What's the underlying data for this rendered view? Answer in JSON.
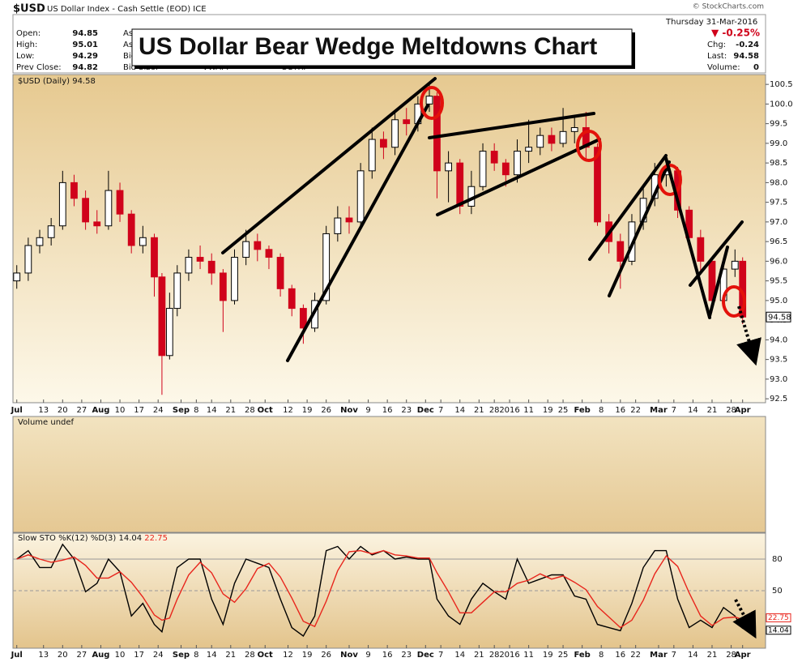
{
  "header": {
    "symbol": "$USD",
    "name": "US Dollar Index - Cash Settle (EOD) ICE",
    "credit": "© StockCharts.com",
    "date": "Thursday 31-Mar-2016"
  },
  "quote": {
    "labels": [
      "Open:",
      "High:",
      "Low:",
      "Prev Close:"
    ],
    "values": [
      94.85,
      95.01,
      94.29,
      94.82
    ],
    "mid_labels": [
      "Ask:",
      "Ask Size:",
      "Bid:",
      "Bid Size:"
    ],
    "vwap": "VWAP:",
    "sctr": "SCTR:",
    "change_pct": "▼ -0.25%",
    "right_labels": [
      "Chg:",
      "Last:",
      "Volume:"
    ],
    "right_values": [
      -0.24,
      94.58,
      0
    ]
  },
  "annotation": "US Dollar Bear Wedge Meltdowns Chart",
  "chart_data": [
    {
      "type": "candlestick",
      "series_name": "$USD (Daily)",
      "x": [
        0,
        3,
        6,
        9,
        12,
        15,
        18,
        21,
        24,
        27,
        30,
        33,
        36,
        38,
        40,
        42,
        45,
        48,
        51,
        54,
        57,
        60,
        63,
        66,
        69,
        72,
        75,
        78,
        81,
        84,
        87,
        90,
        93,
        96,
        99,
        102,
        105,
        108,
        110,
        113,
        116,
        119,
        122,
        125,
        128,
        131,
        134,
        137,
        140,
        143,
        146,
        149,
        152,
        155,
        158,
        161,
        164,
        167,
        170,
        173,
        176,
        179,
        182,
        185,
        188,
        190
      ],
      "open": [
        95.5,
        95.7,
        96.4,
        96.6,
        96.9,
        98.0,
        97.6,
        97.0,
        96.9,
        97.8,
        97.2,
        96.4,
        96.6,
        95.6,
        93.6,
        94.8,
        95.7,
        96.1,
        96.0,
        95.7,
        95.0,
        96.1,
        96.5,
        96.3,
        96.1,
        95.3,
        94.8,
        94.3,
        95.0,
        96.7,
        97.1,
        97.0,
        98.3,
        99.1,
        98.9,
        99.6,
        99.5,
        100.0,
        100.2,
        98.3,
        98.5,
        97.4,
        97.9,
        98.8,
        98.5,
        98.2,
        98.8,
        98.9,
        99.2,
        99.0,
        99.3,
        99.4,
        98.9,
        97.0,
        96.5,
        96.0,
        97.0,
        97.6,
        98.2,
        98.3,
        97.3,
        96.6,
        96.0,
        95.0,
        95.8,
        96.0
      ],
      "high": [
        95.9,
        96.6,
        96.8,
        97.1,
        98.3,
        98.2,
        97.8,
        97.3,
        98.3,
        98.0,
        97.3,
        96.9,
        96.7,
        95.7,
        95.2,
        95.9,
        96.3,
        96.4,
        96.2,
        95.8,
        96.3,
        96.8,
        96.7,
        96.4,
        96.2,
        95.4,
        94.9,
        95.2,
        96.9,
        97.4,
        97.4,
        98.5,
        99.4,
        99.3,
        99.8,
        99.9,
        100.2,
        100.5,
        100.3,
        98.8,
        98.6,
        98.3,
        99.0,
        99.0,
        98.6,
        99.1,
        99.6,
        99.4,
        99.4,
        99.9,
        99.7,
        99.8,
        99.0,
        97.2,
        96.7,
        97.2,
        97.9,
        98.5,
        98.6,
        98.4,
        97.4,
        96.8,
        96.1,
        96.0,
        96.3,
        96.1
      ],
      "low": [
        95.3,
        95.5,
        96.2,
        96.4,
        96.8,
        97.4,
        96.8,
        96.7,
        96.8,
        97.0,
        96.2,
        96.2,
        95.1,
        92.6,
        93.5,
        94.6,
        95.5,
        95.8,
        95.4,
        94.2,
        94.9,
        95.9,
        96.0,
        95.8,
        95.1,
        94.6,
        93.9,
        94.2,
        94.9,
        96.5,
        96.7,
        96.9,
        98.1,
        98.6,
        98.7,
        99.2,
        99.3,
        99.8,
        97.6,
        97.5,
        97.2,
        97.2,
        97.8,
        98.3,
        97.9,
        98.0,
        98.5,
        98.7,
        98.8,
        98.9,
        99.0,
        98.6,
        96.9,
        96.2,
        95.3,
        95.9,
        96.8,
        97.4,
        97.9,
        97.1,
        96.4,
        95.7,
        94.7,
        94.9,
        95.6,
        94.4
      ],
      "close": [
        95.7,
        96.4,
        96.6,
        96.9,
        98.0,
        97.6,
        97.0,
        96.9,
        97.8,
        97.2,
        96.4,
        96.6,
        95.6,
        93.6,
        94.8,
        95.7,
        96.1,
        96.0,
        95.7,
        95.0,
        96.1,
        96.5,
        96.3,
        96.1,
        95.3,
        94.8,
        94.3,
        95.0,
        96.7,
        97.1,
        97.0,
        98.3,
        99.1,
        98.9,
        99.6,
        99.5,
        100.0,
        100.2,
        98.3,
        98.5,
        97.4,
        97.9,
        98.8,
        98.5,
        98.2,
        98.8,
        98.9,
        99.2,
        99.0,
        99.3,
        99.4,
        98.9,
        97.0,
        96.5,
        96.0,
        97.0,
        97.6,
        98.2,
        98.3,
        97.3,
        96.6,
        96.0,
        95.0,
        95.8,
        96.0,
        94.58
      ],
      "up_color": "#ffffff",
      "down_color": "#d0021b",
      "xlim": [
        -1,
        196
      ],
      "xticks": [
        {
          "value": 0,
          "label": "Jul"
        },
        {
          "value": 7,
          "label": "13"
        },
        {
          "value": 12,
          "label": "20"
        },
        {
          "value": 17,
          "label": "27"
        },
        {
          "value": 22,
          "label": "Aug"
        },
        {
          "value": 27,
          "label": "10"
        },
        {
          "value": 32,
          "label": "17"
        },
        {
          "value": 37,
          "label": "24"
        },
        {
          "value": 43,
          "label": "Sep"
        },
        {
          "value": 47,
          "label": "8"
        },
        {
          "value": 51,
          "label": "14"
        },
        {
          "value": 56,
          "label": "21"
        },
        {
          "value": 61,
          "label": "28"
        },
        {
          "value": 65,
          "label": "Oct"
        },
        {
          "value": 71,
          "label": "12"
        },
        {
          "value": 76,
          "label": "19"
        },
        {
          "value": 81,
          "label": "26"
        },
        {
          "value": 87,
          "label": "Nov"
        },
        {
          "value": 92,
          "label": "9"
        },
        {
          "value": 97,
          "label": "16"
        },
        {
          "value": 102,
          "label": "23"
        },
        {
          "value": 107,
          "label": "Dec"
        },
        {
          "value": 111,
          "label": "7"
        },
        {
          "value": 116,
          "label": "14"
        },
        {
          "value": 121,
          "label": "21"
        },
        {
          "value": 125,
          "label": "28"
        },
        {
          "value": 129,
          "label": "2016"
        },
        {
          "value": 134,
          "label": "11"
        },
        {
          "value": 139,
          "label": "19"
        },
        {
          "value": 143,
          "label": "25"
        },
        {
          "value": 148,
          "label": "Feb"
        },
        {
          "value": 153,
          "label": "8"
        },
        {
          "value": 158,
          "label": "16"
        },
        {
          "value": 162,
          "label": "22"
        },
        {
          "value": 168,
          "label": "Mar"
        },
        {
          "value": 172,
          "label": "7"
        },
        {
          "value": 177,
          "label": "14"
        },
        {
          "value": 182,
          "label": "21"
        },
        {
          "value": 187,
          "label": "28"
        },
        {
          "value": 190,
          "label": "Apr"
        }
      ],
      "ylim": [
        92.4,
        100.75
      ],
      "yticks": [
        92.5,
        {
          "value": 93,
          "label": "93.0"
        },
        93.5,
        {
          "value": 94,
          "label": "94.0"
        },
        94.5,
        {
          "value": 95,
          "label": "95.0"
        },
        95.5,
        {
          "value": 96,
          "label": "96.0"
        },
        96.5,
        {
          "value": 97,
          "label": "97.0"
        },
        97.5,
        {
          "value": 98,
          "label": "98.0"
        },
        98.5,
        {
          "value": 99,
          "label": "99.0"
        },
        99.5,
        {
          "value": 100,
          "label": "100.0"
        },
        100.5
      ]
    },
    {
      "type": "volume",
      "title": "Volume undef"
    },
    {
      "type": "line",
      "title": "Slow STO",
      "series": [
        {
          "name": "%K(12)",
          "color": "#000000",
          "values": [
            80,
            88,
            72,
            72,
            94,
            80,
            49,
            57,
            80,
            68,
            26,
            38,
            18,
            11,
            42,
            72,
            80,
            80,
            42,
            18,
            57,
            80,
            76,
            72,
            42,
            15,
            7,
            26,
            88,
            92,
            80,
            92,
            84,
            88,
            80,
            82,
            80,
            80,
            42,
            26,
            18,
            42,
            57,
            49,
            42,
            80,
            57,
            61,
            65,
            65,
            45,
            42,
            18,
            15,
            12,
            38,
            72,
            88,
            88,
            42,
            15,
            22,
            15,
            34,
            26,
            14.04
          ]
        },
        {
          "name": "%D(3)",
          "color": "#e8251c",
          "values": [
            80,
            84,
            80,
            77,
            79,
            82,
            74,
            62,
            62,
            68,
            58,
            44,
            27,
            22,
            24,
            42,
            65,
            77,
            67,
            47,
            39,
            52,
            71,
            76,
            63,
            43,
            21,
            16,
            40,
            69,
            87,
            88,
            85,
            88,
            84,
            83,
            81,
            81,
            67,
            49,
            29,
            29,
            39,
            49,
            49,
            57,
            60,
            66,
            61,
            64,
            58,
            51,
            35,
            25,
            15,
            22,
            41,
            66,
            83,
            73,
            48,
            26,
            17,
            24,
            25,
            22.75
          ]
        }
      ],
      "ylim": [
        -4.6,
        104.6
      ],
      "yticks": [
        50,
        80
      ]
    }
  ]
}
